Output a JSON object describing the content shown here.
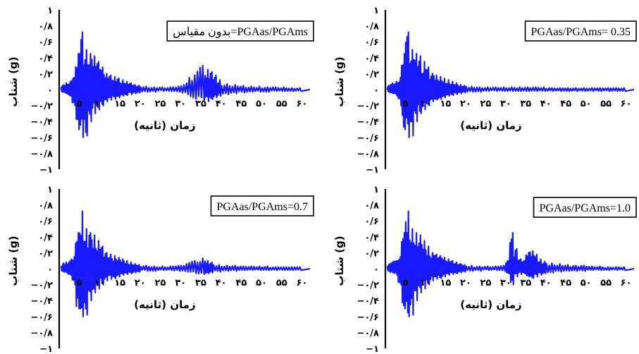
{
  "chart_data": [
    {
      "type": "line",
      "title": "بدون مقیاس=PGAas/PGAms",
      "xlabel": "زمان (ثانیه)",
      "ylabel": "شتاب (g)",
      "x_tick_labels": [
        "۵",
        "۱۰",
        "۱۵",
        "۲۰",
        "۲۵",
        "۳۰",
        "۳۵",
        "۴۰",
        "۴۵",
        "۵۰",
        "۵۵",
        "۶۰"
      ],
      "x_ticks": [
        5,
        10,
        15,
        20,
        25,
        30,
        35,
        40,
        45,
        50,
        55,
        60
      ],
      "y_tick_labels": [
        "۱",
        "۰/۸",
        "۰/۶",
        "۰/۴",
        "۰/۲",
        "۰",
        "−۰/۲",
        "−۰/۴",
        "−۰/۶",
        "−۰/۸",
        "−۱"
      ],
      "y_ticks": [
        1,
        0.8,
        0.6,
        0.4,
        0.2,
        0,
        -0.2,
        -0.4,
        -0.6,
        -0.8,
        -1
      ],
      "xlim": [
        0,
        62
      ],
      "ylim": [
        -1,
        1
      ],
      "color": "#1a1aff",
      "series": [
        {
          "x": [
            1,
            2,
            3,
            4,
            5,
            6,
            7,
            8,
            9,
            10,
            11,
            12,
            13,
            14,
            15,
            16,
            17,
            18,
            19,
            20,
            22,
            24,
            26,
            28,
            30,
            32,
            34,
            36,
            37,
            38,
            39,
            40,
            42,
            44,
            46,
            48,
            50,
            52,
            54,
            56,
            58,
            60
          ],
          "peaks": [
            0.05,
            0.08,
            0.1,
            0.15,
            0.45,
            0.72,
            0.5,
            0.45,
            0.42,
            0.35,
            0.28,
            0.2,
            0.18,
            0.16,
            0.14,
            0.12,
            0.1,
            0.08,
            0.06,
            0.05,
            0.04,
            0.03,
            0.03,
            0.03,
            0.04,
            0.08,
            0.18,
            0.3,
            0.25,
            0.22,
            0.18,
            0.12,
            0.07,
            0.06,
            0.05,
            0.04,
            0.04,
            0.03,
            0.03,
            0.03,
            0.02,
            0.02
          ],
          "troughs": [
            -0.03,
            -0.05,
            -0.08,
            -0.2,
            -0.5,
            -0.6,
            -0.58,
            -0.4,
            -0.3,
            -0.25,
            -0.2,
            -0.15,
            -0.13,
            -0.12,
            -0.1,
            -0.08,
            -0.07,
            -0.06,
            -0.05,
            -0.04,
            -0.03,
            -0.03,
            -0.02,
            -0.02,
            -0.03,
            -0.06,
            -0.12,
            -0.14,
            -0.15,
            -0.12,
            -0.1,
            -0.08,
            -0.06,
            -0.05,
            -0.04,
            -0.03,
            -0.03,
            -0.03,
            -0.02,
            -0.02,
            -0.02,
            -0.02
          ]
        }
      ]
    },
    {
      "type": "line",
      "title": "PGAas/PGAms= 0.35",
      "xlabel": "زمان (ثانیه)",
      "ylabel": "شتاب (g)",
      "x_tick_labels": [
        "۵",
        "۱۰",
        "۱۵",
        "۲۰",
        "۲۵",
        "۳۰",
        "۳۵",
        "۴۰",
        "۴۵",
        "۵۰",
        "۵۵",
        "۶۰"
      ],
      "x_ticks": [
        5,
        10,
        15,
        20,
        25,
        30,
        35,
        40,
        45,
        50,
        55,
        60
      ],
      "y_tick_labels": [
        "۱",
        "۰/۸",
        "۰/۶",
        "۰/۴",
        "۰/۲",
        "۰",
        "−۰/۲",
        "−۰/۴",
        "−۰/۶",
        "−۰/۸",
        "−۱"
      ],
      "y_ticks": [
        1,
        0.8,
        0.6,
        0.4,
        0.2,
        0,
        -0.2,
        -0.4,
        -0.6,
        -0.8,
        -1
      ],
      "xlim": [
        0,
        62
      ],
      "ylim": [
        -1,
        1
      ],
      "color": "#1a1aff",
      "series": [
        {
          "x": [
            1,
            2,
            3,
            4,
            5,
            6,
            7,
            8,
            9,
            10,
            11,
            12,
            13,
            14,
            15,
            16,
            17,
            18,
            19,
            20,
            22,
            24,
            26,
            28,
            30,
            32,
            34,
            36,
            38,
            40,
            42,
            44,
            46,
            48,
            50,
            52,
            54,
            56,
            58,
            60
          ],
          "peaks": [
            0.05,
            0.08,
            0.1,
            0.15,
            0.45,
            0.72,
            0.5,
            0.45,
            0.42,
            0.35,
            0.28,
            0.2,
            0.18,
            0.16,
            0.14,
            0.12,
            0.1,
            0.08,
            0.06,
            0.05,
            0.04,
            0.03,
            0.03,
            0.03,
            0.03,
            0.03,
            0.03,
            0.03,
            0.03,
            0.03,
            0.02,
            0.02,
            0.02,
            0.02,
            0.02,
            0.02,
            0.02,
            0.02,
            0.02,
            0.02
          ],
          "troughs": [
            -0.03,
            -0.05,
            -0.08,
            -0.2,
            -0.5,
            -0.6,
            -0.58,
            -0.4,
            -0.3,
            -0.25,
            -0.2,
            -0.15,
            -0.13,
            -0.12,
            -0.1,
            -0.08,
            -0.07,
            -0.06,
            -0.05,
            -0.04,
            -0.03,
            -0.03,
            -0.02,
            -0.02,
            -0.02,
            -0.02,
            -0.02,
            -0.02,
            -0.02,
            -0.02,
            -0.02,
            -0.02,
            -0.02,
            -0.02,
            -0.02,
            -0.02,
            -0.02,
            -0.02,
            -0.02,
            -0.02
          ]
        }
      ]
    },
    {
      "type": "line",
      "title": "PGAas/PGAms=0.7",
      "xlabel": "زمان (ثانیه)",
      "ylabel": "شتاب (g)",
      "x_tick_labels": [
        "۵",
        "۱۰",
        "۱۵",
        "۲۰",
        "۲۵",
        "۳۰",
        "۳۵",
        "۴۰",
        "۴۵",
        "۵۰",
        "۵۵",
        "۶۰"
      ],
      "x_ticks": [
        5,
        10,
        15,
        20,
        25,
        30,
        35,
        40,
        45,
        50,
        55,
        60
      ],
      "y_tick_labels": [
        "۱",
        "۰/۸",
        "۰/۶",
        "۰/۴",
        "۰/۲",
        "۰",
        "−۰/۲",
        "−۰/۴",
        "−۰/۶",
        "−۰/۸",
        "−۱"
      ],
      "y_ticks": [
        1,
        0.8,
        0.6,
        0.4,
        0.2,
        0,
        -0.2,
        -0.4,
        -0.6,
        -0.8,
        -1
      ],
      "xlim": [
        0,
        62
      ],
      "ylim": [
        -1,
        1
      ],
      "color": "#1a1aff",
      "series": [
        {
          "x": [
            1,
            2,
            3,
            4,
            5,
            6,
            7,
            8,
            9,
            10,
            11,
            12,
            13,
            14,
            15,
            16,
            17,
            18,
            19,
            20,
            22,
            24,
            26,
            28,
            30,
            32,
            34,
            36,
            37,
            38,
            40,
            42,
            44,
            46,
            48,
            50,
            52,
            54,
            56,
            58,
            60
          ],
          "peaks": [
            0.05,
            0.08,
            0.1,
            0.15,
            0.45,
            0.72,
            0.5,
            0.45,
            0.42,
            0.35,
            0.28,
            0.2,
            0.18,
            0.16,
            0.14,
            0.12,
            0.1,
            0.08,
            0.06,
            0.05,
            0.04,
            0.03,
            0.03,
            0.03,
            0.04,
            0.06,
            0.1,
            0.13,
            0.1,
            0.08,
            0.05,
            0.04,
            0.04,
            0.03,
            0.03,
            0.03,
            0.03,
            0.02,
            0.02,
            0.02,
            0.02
          ],
          "troughs": [
            -0.03,
            -0.05,
            -0.08,
            -0.2,
            -0.5,
            -0.6,
            -0.58,
            -0.4,
            -0.3,
            -0.25,
            -0.2,
            -0.15,
            -0.13,
            -0.12,
            -0.1,
            -0.08,
            -0.07,
            -0.06,
            -0.05,
            -0.04,
            -0.03,
            -0.03,
            -0.02,
            -0.02,
            -0.03,
            -0.04,
            -0.06,
            -0.07,
            -0.06,
            -0.05,
            -0.04,
            -0.03,
            -0.03,
            -0.02,
            -0.02,
            -0.02,
            -0.02,
            -0.02,
            -0.02,
            -0.02,
            -0.02
          ]
        }
      ]
    },
    {
      "type": "line",
      "title": "PGAas/PGAms=1.0",
      "xlabel": "زمان (ثانیه)",
      "ylabel": "شتاب (g)",
      "x_tick_labels": [
        "۵",
        "۱۰",
        "۱۵",
        "۲۰",
        "۲۵",
        "۳۰",
        "۳۵",
        "۴۰",
        "۴۵",
        "۵۰",
        "۵۵",
        "۶۰"
      ],
      "x_ticks": [
        5,
        10,
        15,
        20,
        25,
        30,
        35,
        40,
        45,
        50,
        55,
        60
      ],
      "y_tick_labels": [
        "۱",
        "۰/۸",
        "۰/۶",
        "۰/۴",
        "۰/۲",
        "۰",
        "−۰/۲",
        "−۰/۴",
        "−۰/۶",
        "−۰/۸",
        "−۱"
      ],
      "y_ticks": [
        1,
        0.8,
        0.6,
        0.4,
        0.2,
        0,
        -0.2,
        -0.4,
        -0.6,
        -0.8,
        -1
      ],
      "xlim": [
        0,
        62
      ],
      "ylim": [
        -1,
        1
      ],
      "color": "#1a1aff",
      "series": [
        {
          "x": [
            1,
            2,
            3,
            4,
            5,
            6,
            7,
            8,
            9,
            10,
            11,
            12,
            13,
            14,
            15,
            16,
            17,
            18,
            19,
            20,
            22,
            24,
            26,
            28,
            30,
            31,
            32,
            33,
            34,
            35,
            36,
            37,
            38,
            39,
            40,
            42,
            44,
            46,
            48,
            50,
            52,
            54,
            56,
            58,
            60
          ],
          "peaks": [
            0.05,
            0.08,
            0.1,
            0.15,
            0.45,
            0.72,
            0.5,
            0.45,
            0.42,
            0.35,
            0.28,
            0.2,
            0.18,
            0.16,
            0.14,
            0.12,
            0.1,
            0.08,
            0.06,
            0.05,
            0.04,
            0.03,
            0.03,
            0.03,
            0.04,
            0.1,
            0.45,
            0.25,
            0.12,
            0.1,
            0.2,
            0.22,
            0.18,
            0.12,
            0.09,
            0.07,
            0.06,
            0.05,
            0.04,
            0.04,
            0.03,
            0.03,
            0.02,
            0.02,
            0.02
          ],
          "troughs": [
            -0.03,
            -0.05,
            -0.08,
            -0.2,
            -0.5,
            -0.6,
            -0.58,
            -0.4,
            -0.3,
            -0.25,
            -0.2,
            -0.15,
            -0.13,
            -0.12,
            -0.1,
            -0.08,
            -0.07,
            -0.06,
            -0.05,
            -0.04,
            -0.03,
            -0.03,
            -0.02,
            -0.02,
            -0.03,
            -0.06,
            -0.2,
            -0.1,
            -0.07,
            -0.06,
            -0.1,
            -0.12,
            -0.1,
            -0.08,
            -0.06,
            -0.05,
            -0.04,
            -0.03,
            -0.03,
            -0.03,
            -0.02,
            -0.02,
            -0.02,
            -0.02,
            -0.02
          ]
        }
      ]
    }
  ]
}
